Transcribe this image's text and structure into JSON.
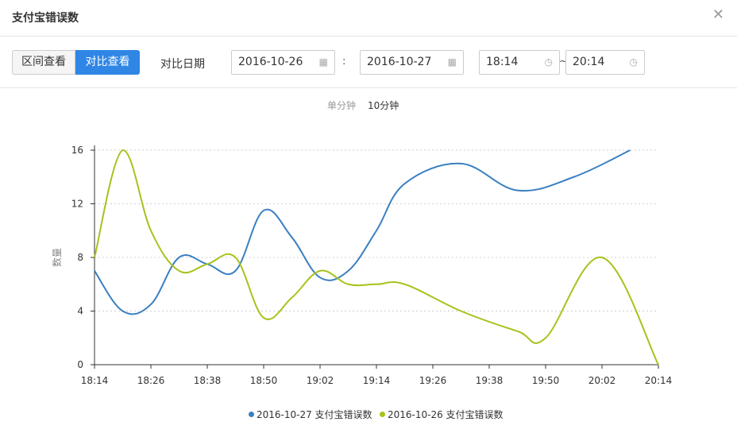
{
  "dialog": {
    "title": "支付宝错误数",
    "close_icon": "close-icon"
  },
  "toolbar": {
    "range_view_label": "区间查看",
    "compare_view_label": "对比查看",
    "compare_date_label": "对比日期",
    "date1": "2016-10-26",
    "date_separator": ":",
    "date2": "2016-10-27",
    "time_start": "18:14",
    "time_separator": "~",
    "time_end": "20:14",
    "calendar_icon": "calendar-icon",
    "clock_icon": "clock-icon"
  },
  "units": {
    "unit_label": "单分钟",
    "unit_selected": "10分钟"
  },
  "colors": {
    "accent": "#2f86e5",
    "series_blue": "#3a7fc1",
    "series_green": "#a8c21b"
  },
  "chart_data": {
    "type": "line",
    "x": [
      "18:14",
      "18:26",
      "18:38",
      "18:50",
      "19:02",
      "19:14",
      "19:26",
      "19:38",
      "19:50",
      "20:02",
      "20:14"
    ],
    "ylabel": "数量",
    "xlabel": "",
    "ylim": [
      0,
      16
    ],
    "yticks": [
      0,
      4,
      8,
      12,
      16
    ],
    "grid": true,
    "legend_position": "bottom",
    "series": [
      {
        "name": "2016-10-27 支付宝错误数",
        "color": "#3a7fc1",
        "points": [
          [
            "18:14",
            7
          ],
          [
            "18:20",
            4
          ],
          [
            "18:26",
            4.5
          ],
          [
            "18:32",
            8
          ],
          [
            "18:38",
            7.5
          ],
          [
            "18:44",
            7
          ],
          [
            "18:50",
            11.5
          ],
          [
            "18:56",
            9.5
          ],
          [
            "19:02",
            6.5
          ],
          [
            "19:08",
            7
          ],
          [
            "19:14",
            10
          ],
          [
            "19:20",
            13.5
          ],
          [
            "19:32",
            15
          ],
          [
            "19:44",
            13
          ],
          [
            "19:56",
            14
          ],
          [
            "20:08",
            16
          ]
        ]
      },
      {
        "name": "2016-10-26 支付宝错误数",
        "color": "#a8c21b",
        "points": [
          [
            "18:14",
            8
          ],
          [
            "18:20",
            16
          ],
          [
            "18:26",
            10
          ],
          [
            "18:32",
            7
          ],
          [
            "18:38",
            7.5
          ],
          [
            "18:44",
            8
          ],
          [
            "18:50",
            3.5
          ],
          [
            "18:56",
            5
          ],
          [
            "19:02",
            7
          ],
          [
            "19:08",
            6
          ],
          [
            "19:14",
            6
          ],
          [
            "19:20",
            6
          ],
          [
            "19:32",
            4
          ],
          [
            "19:44",
            2.5
          ],
          [
            "19:50",
            2
          ],
          [
            "20:02",
            8
          ],
          [
            "20:14",
            0
          ]
        ]
      }
    ]
  }
}
